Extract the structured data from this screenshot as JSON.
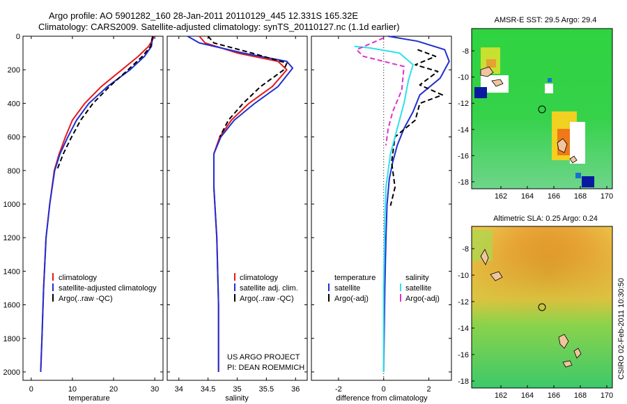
{
  "header": {
    "line1": "Argo profile: AO 5901282_160 28-Jan-2011 20110129_445 12.331S 165.32E",
    "line2": "Climatology: CARS2009. Satellite-adjusted climatology: synTS_20110127.nc (1.1d earlier)"
  },
  "footer": {
    "project": "US ARGO PROJECT",
    "pi": "PI: DEAN ROEMMICH",
    "stamp": "CSIRO 02-Feb-2011 10:30:50"
  },
  "colors": {
    "climatology": "#e41a1c",
    "satellite": "#1f2fd0",
    "argo": "#000000",
    "sal_satellite": "#2ee0ee",
    "sal_argo": "#e030d0"
  },
  "chart_data": [
    {
      "id": "temperature",
      "type": "line",
      "xlabel": "temperature",
      "xlim": [
        -2,
        32
      ],
      "ylim": [
        2050,
        0
      ],
      "xticks": [
        0,
        10,
        20,
        30
      ],
      "yticks": [
        0,
        200,
        400,
        600,
        800,
        1000,
        1200,
        1400,
        1600,
        1800,
        2000
      ],
      "series": [
        {
          "name": "climatology",
          "color": "#e41a1c",
          "dash": "",
          "x": [
            29.8,
            29.5,
            28.5,
            26,
            22,
            17,
            13,
            10,
            8.3,
            6.8,
            5.6,
            4.5,
            3.6,
            3.0,
            2.6,
            2.3
          ],
          "y": [
            0,
            20,
            60,
            120,
            200,
            300,
            400,
            500,
            600,
            700,
            800,
            1000,
            1200,
            1500,
            1800,
            2000
          ]
        },
        {
          "name": "satellite-adjusted climatology",
          "color": "#1f2fd0",
          "dash": "",
          "x": [
            29.6,
            29.4,
            29.2,
            27.5,
            24,
            18.5,
            14,
            11,
            8.9,
            7.0,
            5.7,
            4.5,
            3.6,
            3.0,
            2.6,
            2.3
          ],
          "y": [
            0,
            20,
            60,
            120,
            200,
            300,
            400,
            500,
            600,
            700,
            800,
            1000,
            1200,
            1500,
            1800,
            2000
          ]
        },
        {
          "name": "Argo(..raw -QC)",
          "color": "#000000",
          "dash": "7 4",
          "x": [
            29.5,
            29.3,
            29.0,
            27,
            23.5,
            19,
            15,
            12,
            9.8,
            7.8,
            6.2
          ],
          "y": [
            0,
            20,
            60,
            120,
            200,
            300,
            400,
            500,
            600,
            700,
            800
          ]
        }
      ],
      "legend": [
        "climatology",
        "satellite-adjusted climatology",
        "Argo(..raw -QC)"
      ]
    },
    {
      "id": "salinity",
      "type": "line",
      "xlabel": "salinity",
      "xlim": [
        33.8,
        36.2
      ],
      "ylim": [
        2050,
        0
      ],
      "xticks": [
        34,
        34.5,
        35,
        35.5,
        36
      ],
      "xticklabels": [
        "34",
        "34.5",
        "35",
        "35.5",
        "36"
      ],
      "series": [
        {
          "name": "climatology",
          "color": "#e41a1c",
          "dash": "",
          "x": [
            34.35,
            34.45,
            35.0,
            35.7,
            35.85,
            35.6,
            35.2,
            34.9,
            34.7,
            34.6,
            34.6,
            34.65,
            34.68,
            34.68
          ],
          "y": [
            0,
            40,
            100,
            150,
            200,
            300,
            400,
            500,
            600,
            700,
            900,
            1200,
            1600,
            2000
          ]
        },
        {
          "name": "satellite adj. clim.",
          "color": "#1f2fd0",
          "dash": "",
          "x": [
            34.15,
            34.35,
            35.1,
            35.85,
            35.95,
            35.7,
            35.3,
            34.95,
            34.72,
            34.6,
            34.6,
            34.65,
            34.68,
            34.68
          ],
          "y": [
            0,
            40,
            100,
            150,
            190,
            300,
            400,
            500,
            600,
            700,
            900,
            1200,
            1600,
            2000
          ]
        },
        {
          "name": "Argo(..raw -QC)",
          "color": "#000000",
          "dash": "7 4",
          "x": [
            34.5,
            34.6,
            35.25,
            35.85,
            35.8,
            35.4,
            35.1,
            34.85,
            34.7
          ],
          "y": [
            0,
            40,
            100,
            160,
            200,
            300,
            400,
            500,
            600
          ]
        }
      ],
      "legend": [
        "climatology",
        "satellite adj. clim.",
        "Argo(..raw -QC)"
      ]
    },
    {
      "id": "difference",
      "type": "line",
      "xlabel": "difference from climatology",
      "xlim": [
        -3.2,
        3.0
      ],
      "ylim": [
        2050,
        0
      ],
      "xticks": [
        -2,
        0,
        2
      ],
      "zero_line": 0,
      "series": [
        {
          "name": "temperature satellite",
          "color": "#1f2fd0",
          "dash": "",
          "x": [
            0.2,
            1.5,
            2.7,
            2.9,
            2.5,
            1.6,
            1.3,
            0.9,
            0.6,
            0.4,
            0.25,
            0.15,
            0.1,
            0.05,
            0.02,
            0.0
          ],
          "y": [
            0,
            30,
            80,
            150,
            250,
            350,
            450,
            550,
            650,
            750,
            850,
            1000,
            1200,
            1500,
            1800,
            2000
          ]
        },
        {
          "name": "temperature Argo(-adj)",
          "color": "#000000",
          "dash": "7 4",
          "x": [
            1.5,
            2.3,
            1.4,
            2.4,
            1.6,
            2.6,
            1.6,
            1.4,
            0.5,
            0.35,
            0.5,
            0.3
          ],
          "y": [
            80,
            120,
            170,
            210,
            290,
            350,
            400,
            500,
            600,
            750,
            900,
            1010
          ]
        },
        {
          "name": "salinity satellite",
          "color": "#2ee0ee",
          "dash": "",
          "x": [
            -1.3,
            -0.6,
            0.7,
            1.3,
            1.1,
            0.9,
            0.6,
            0.3,
            0.1,
            0.05,
            0.0,
            0.0
          ],
          "y": [
            60,
            70,
            100,
            170,
            260,
            400,
            550,
            700,
            900,
            1100,
            1500,
            2000
          ]
        },
        {
          "name": "salinity Argo(-adj)",
          "color": "#e030d0",
          "dash": "7 4",
          "x": [
            0.0,
            -1.2,
            -0.9,
            0.9,
            0.8,
            0.4,
            0.2,
            0.1
          ],
          "y": [
            10,
            80,
            120,
            180,
            320,
            450,
            550,
            650
          ]
        }
      ],
      "legend_left_title": "temperature",
      "legend_right_title": "salinity",
      "legend_left": [
        "satellite",
        "Argo(-adj)"
      ],
      "legend_right": [
        "satellite",
        "Argo(-adj)"
      ]
    },
    {
      "id": "sst_map",
      "type": "heatmap",
      "title": "AMSR-E SST: 29.5 Argo: 29.4",
      "xticks": [
        "162",
        "164",
        "166",
        "168",
        "170"
      ],
      "yticks": [
        "-8",
        "-10",
        "-12",
        "-14",
        "-16",
        "-18"
      ],
      "float_position": {
        "lon": 165.32,
        "lat": -12.331
      }
    },
    {
      "id": "sla_map",
      "type": "heatmap",
      "title": "Altimetric SLA: 0.25 Argo: 0.24",
      "xticks": [
        "162",
        "164",
        "166",
        "168",
        "170"
      ],
      "yticks": [
        "-8",
        "-10",
        "-12",
        "-14",
        "-16",
        "-18"
      ],
      "float_position": {
        "lon": 165.32,
        "lat": -12.331
      }
    }
  ]
}
